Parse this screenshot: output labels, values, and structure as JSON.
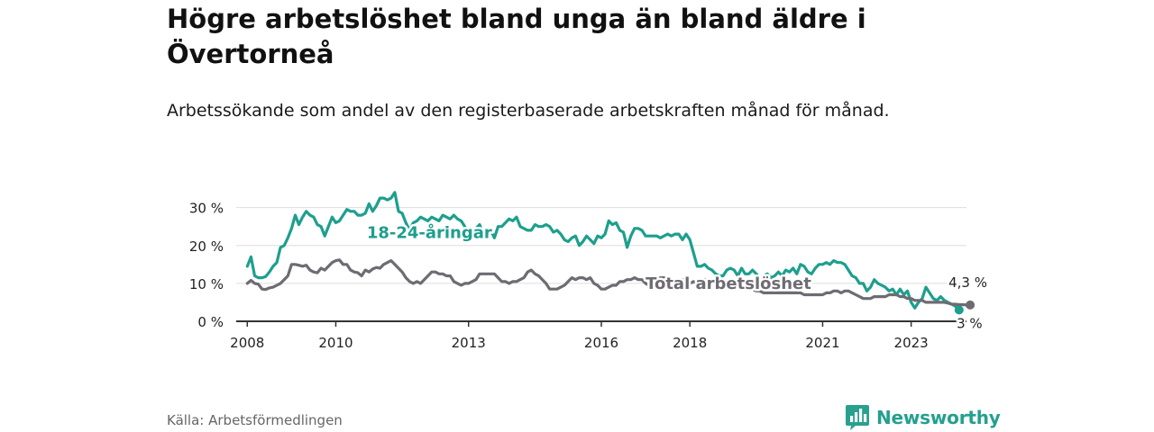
{
  "title": "Högre arbetslöshet bland unga än bland äldre i Övertorneå",
  "subtitle": "Arbetssökande som andel av den registerbaserade arbetskraften månad för månad.",
  "source": "Källa: Arbetsförmedlingen",
  "brand": {
    "name": "Newsworthy",
    "icon": "newsworthy-logo-icon"
  },
  "colors": {
    "youth": "#1d9f8e",
    "total": "#6e6b72",
    "grid": "#dddddd",
    "axis": "#333333"
  },
  "chart_data": {
    "type": "line",
    "title": "Högre arbetslöshet bland unga än bland äldre i Övertorneå",
    "xlabel": "",
    "ylabel": "",
    "x_start": 2008.0,
    "x_step": 0.0833333,
    "xlim": [
      2007.75,
      2024.25
    ],
    "ylim": [
      0,
      33
    ],
    "x_ticks": [
      {
        "value": 2008,
        "label": "2008"
      },
      {
        "value": 2010,
        "label": "2010"
      },
      {
        "value": 2013,
        "label": "2013"
      },
      {
        "value": 2016,
        "label": "2016"
      },
      {
        "value": 2018,
        "label": "2018"
      },
      {
        "value": 2021,
        "label": "2021"
      },
      {
        "value": 2023,
        "label": "2023"
      }
    ],
    "y_ticks": [
      {
        "value": 0,
        "label": "0 %"
      },
      {
        "value": 10,
        "label": "10 %"
      },
      {
        "value": 20,
        "label": "20 %"
      },
      {
        "value": 30,
        "label": "30 %"
      }
    ],
    "grid": true,
    "series": [
      {
        "name": "18-24-åringar",
        "label": "18-24-åringar",
        "label_position": [
          2010.7,
          22
        ],
        "end_label": "3 %",
        "values": [
          14.5,
          17.0,
          12.0,
          11.5,
          11.5,
          11.8,
          13.0,
          14.5,
          15.5,
          19.5,
          20.0,
          22.0,
          24.5,
          28.0,
          25.5,
          27.5,
          29.0,
          28.0,
          27.5,
          25.5,
          25.0,
          22.5,
          25.0,
          27.5,
          26.0,
          26.5,
          28.0,
          29.5,
          29.0,
          29.0,
          28.0,
          28.0,
          28.5,
          31.0,
          29.0,
          30.5,
          32.5,
          32.5,
          32.0,
          32.5,
          34.0,
          29.0,
          28.5,
          26.0,
          24.0,
          26.0,
          26.5,
          27.5,
          27.0,
          26.5,
          27.5,
          27.0,
          26.5,
          28.0,
          27.5,
          27.0,
          28.0,
          27.0,
          26.5,
          25.0,
          22.0,
          23.0,
          24.5,
          25.5,
          23.0,
          24.5,
          24.0,
          22.0,
          25.0,
          25.0,
          26.0,
          27.0,
          26.5,
          27.5,
          25.0,
          24.5,
          24.0,
          24.0,
          25.5,
          25.0,
          25.0,
          25.5,
          25.0,
          23.5,
          24.0,
          23.0,
          21.5,
          21.0,
          22.0,
          22.5,
          20.0,
          21.0,
          22.5,
          21.5,
          20.5,
          22.5,
          22.0,
          23.0,
          26.5,
          25.5,
          26.0,
          24.0,
          23.5,
          19.5,
          22.5,
          24.5,
          24.5,
          24.0,
          22.5,
          22.5,
          22.5,
          22.5,
          22.0,
          22.5,
          23.0,
          22.5,
          23.0,
          23.0,
          21.5,
          23.0,
          21.5,
          18.0,
          14.5,
          14.5,
          15.0,
          14.0,
          13.5,
          12.5,
          12.0,
          12.0,
          13.5,
          14.0,
          13.5,
          12.0,
          14.0,
          12.5,
          12.5,
          13.5,
          12.5,
          11.5,
          12.0,
          12.5,
          11.5,
          12.0,
          13.0,
          12.0,
          13.5,
          13.0,
          14.0,
          12.5,
          15.0,
          14.5,
          13.0,
          12.5,
          14.0,
          15.0,
          15.0,
          15.5,
          15.0,
          16.0,
          15.5,
          15.5,
          15.0,
          13.5,
          12.0,
          11.5,
          10.0,
          10.0,
          8.0,
          9.0,
          11.0,
          10.0,
          9.5,
          9.0,
          8.0,
          8.5,
          7.0,
          8.5,
          7.0,
          8.0,
          5.0,
          3.5,
          5.0,
          6.0,
          9.0,
          7.5,
          6.0,
          5.5,
          6.5,
          5.5,
          5.0,
          4.5,
          4.0,
          3.0
        ]
      },
      {
        "name": "Total arbetslöshet",
        "label": "Total arbetslöshet",
        "label_position": [
          2017.0,
          8.5
        ],
        "end_label": "4,3 %",
        "values": [
          10.0,
          10.8,
          10.0,
          9.8,
          8.5,
          8.4,
          8.8,
          9.0,
          9.5,
          10.0,
          11.0,
          12.0,
          15.0,
          15.0,
          14.8,
          14.5,
          14.8,
          13.5,
          13.0,
          12.8,
          14.0,
          13.5,
          14.5,
          15.5,
          16.0,
          16.2,
          15.0,
          15.0,
          13.5,
          13.0,
          12.8,
          12.0,
          13.5,
          13.0,
          13.8,
          14.2,
          14.0,
          15.0,
          15.5,
          16.0,
          15.0,
          14.0,
          13.0,
          11.5,
          10.5,
          10.0,
          10.5,
          10.0,
          11.0,
          12.0,
          13.0,
          13.0,
          12.5,
          12.5,
          12.0,
          12.0,
          10.5,
          10.0,
          9.5,
          10.0,
          10.0,
          10.5,
          11.0,
          12.5,
          12.5,
          12.5,
          12.5,
          12.5,
          11.5,
          10.5,
          10.5,
          10.0,
          10.5,
          10.5,
          11.0,
          11.5,
          13.0,
          13.5,
          12.5,
          12.0,
          11.0,
          10.0,
          8.5,
          8.5,
          8.5,
          9.0,
          9.5,
          10.5,
          11.5,
          11.0,
          11.5,
          11.5,
          11.0,
          11.5,
          10.0,
          9.5,
          8.5,
          8.5,
          9.0,
          9.5,
          9.5,
          10.5,
          10.5,
          11.0,
          11.0,
          11.5,
          11.0,
          11.0,
          10.0,
          9.5,
          10.5,
          11.0,
          11.5,
          11.5,
          11.0,
          11.0,
          10.5,
          10.5,
          11.0,
          10.5,
          10.0,
          10.5,
          10.0,
          10.5,
          11.0,
          10.5,
          10.5,
          10.5,
          10.5,
          10.5,
          10.5,
          10.0,
          9.5,
          9.5,
          9.0,
          9.0,
          8.5,
          8.5,
          8.0,
          8.0,
          7.5,
          7.5,
          7.5,
          7.5,
          7.5,
          7.5,
          7.5,
          7.5,
          7.5,
          7.5,
          7.5,
          7.0,
          7.0,
          7.0,
          7.0,
          7.0,
          7.0,
          7.5,
          7.5,
          8.0,
          8.0,
          7.5,
          8.0,
          8.0,
          7.5,
          7.0,
          6.5,
          6.0,
          6.0,
          6.0,
          6.5,
          6.5,
          6.5,
          6.5,
          7.0,
          7.0,
          7.0,
          6.5,
          6.5,
          6.0,
          6.0,
          5.5,
          5.5,
          5.5,
          5.0,
          5.0,
          5.0,
          5.0,
          5.0,
          5.0,
          4.8,
          4.5,
          4.5,
          4.4,
          4.4,
          4.3,
          4.3
        ]
      }
    ]
  }
}
